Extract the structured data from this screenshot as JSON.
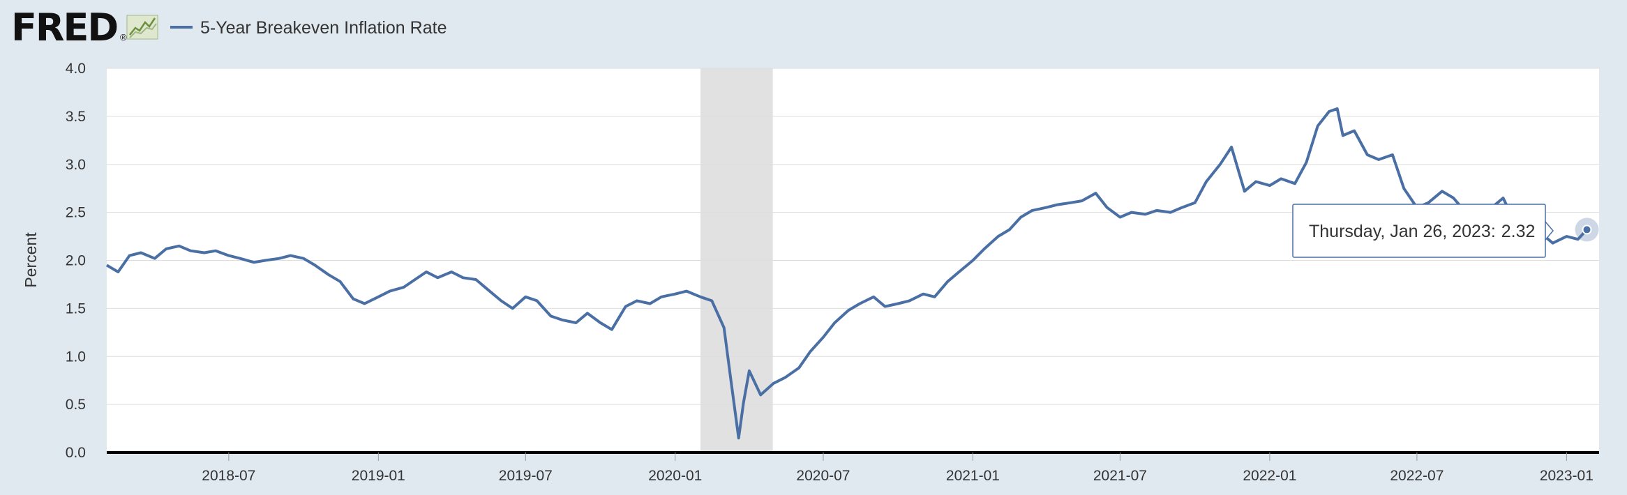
{
  "header": {
    "logo_text": "FRED",
    "logo_mark": "®",
    "logo_icon": "sparkline-icon"
  },
  "colors": {
    "background": "#e1e9f0",
    "plot_background": "#ffffff",
    "series_line": "#4a6fa5",
    "recession_band": "#e1e1e1",
    "grid": "#dddddd",
    "axis": "#000000"
  },
  "tooltip": {
    "date_text": "Thursday, Jan 26, 2023:",
    "value_text": "2.32"
  },
  "chart_data": {
    "type": "line",
    "title": "",
    "ylabel": "Percent",
    "xlabel": "",
    "ylim": [
      0,
      4.0
    ],
    "xlim": [
      "2018-02-01",
      "2023-02-10"
    ],
    "grid": true,
    "legend": "top-left",
    "y_ticks": [
      "0.0",
      "0.5",
      "1.0",
      "1.5",
      "2.0",
      "2.5",
      "3.0",
      "3.5",
      "4.0"
    ],
    "y_tick_values": [
      0,
      0.5,
      1.0,
      1.5,
      2.0,
      2.5,
      3.0,
      3.5,
      4.0
    ],
    "x_ticks": [
      "2018-07",
      "2019-01",
      "2019-07",
      "2020-01",
      "2020-07",
      "2021-01",
      "2021-07",
      "2022-01",
      "2022-07",
      "2023-01"
    ],
    "x_tick_values": [
      "2018-07-01",
      "2019-01-01",
      "2019-07-01",
      "2020-01-01",
      "2020-07-01",
      "2021-01-01",
      "2021-07-01",
      "2022-01-01",
      "2022-07-01",
      "2023-01-01"
    ],
    "recessions": [
      {
        "start": "2020-02-01",
        "end": "2020-04-30"
      }
    ],
    "series": [
      {
        "name": "5-Year Breakeven Inflation Rate",
        "x": [
          "2018-02-01",
          "2018-02-15",
          "2018-03-01",
          "2018-03-15",
          "2018-04-01",
          "2018-04-15",
          "2018-05-01",
          "2018-05-15",
          "2018-06-01",
          "2018-06-15",
          "2018-07-01",
          "2018-07-15",
          "2018-08-01",
          "2018-08-15",
          "2018-09-01",
          "2018-09-15",
          "2018-10-01",
          "2018-10-15",
          "2018-11-01",
          "2018-11-15",
          "2018-12-01",
          "2018-12-15",
          "2019-01-01",
          "2019-01-15",
          "2019-02-01",
          "2019-02-15",
          "2019-03-01",
          "2019-03-15",
          "2019-04-01",
          "2019-04-15",
          "2019-05-01",
          "2019-05-15",
          "2019-06-01",
          "2019-06-15",
          "2019-07-01",
          "2019-07-15",
          "2019-08-01",
          "2019-08-15",
          "2019-09-01",
          "2019-09-15",
          "2019-10-01",
          "2019-10-15",
          "2019-11-01",
          "2019-11-15",
          "2019-12-01",
          "2019-12-15",
          "2020-01-01",
          "2020-01-15",
          "2020-02-01",
          "2020-02-15",
          "2020-03-01",
          "2020-03-10",
          "2020-03-19",
          "2020-03-25",
          "2020-04-01",
          "2020-04-15",
          "2020-05-01",
          "2020-05-15",
          "2020-06-01",
          "2020-06-15",
          "2020-07-01",
          "2020-07-15",
          "2020-08-01",
          "2020-08-15",
          "2020-09-01",
          "2020-09-15",
          "2020-10-01",
          "2020-10-15",
          "2020-11-01",
          "2020-11-15",
          "2020-12-01",
          "2020-12-15",
          "2021-01-01",
          "2021-01-15",
          "2021-02-01",
          "2021-02-15",
          "2021-03-01",
          "2021-03-15",
          "2021-04-01",
          "2021-04-15",
          "2021-05-01",
          "2021-05-15",
          "2021-06-01",
          "2021-06-15",
          "2021-07-01",
          "2021-07-15",
          "2021-08-01",
          "2021-08-15",
          "2021-09-01",
          "2021-09-15",
          "2021-10-01",
          "2021-10-15",
          "2021-11-01",
          "2021-11-15",
          "2021-12-01",
          "2021-12-15",
          "2022-01-01",
          "2022-01-15",
          "2022-02-01",
          "2022-02-15",
          "2022-03-01",
          "2022-03-15",
          "2022-03-25",
          "2022-04-01",
          "2022-04-15",
          "2022-05-01",
          "2022-05-15",
          "2022-06-01",
          "2022-06-15",
          "2022-07-01",
          "2022-07-15",
          "2022-08-01",
          "2022-08-15",
          "2022-09-01",
          "2022-09-15",
          "2022-10-01",
          "2022-10-15",
          "2022-11-01",
          "2022-11-15",
          "2022-12-01",
          "2022-12-15",
          "2023-01-01",
          "2023-01-15",
          "2023-01-26"
        ],
        "y": [
          1.95,
          1.88,
          2.05,
          2.08,
          2.02,
          2.12,
          2.15,
          2.1,
          2.08,
          2.1,
          2.05,
          2.02,
          1.98,
          2.0,
          2.02,
          2.05,
          2.02,
          1.95,
          1.85,
          1.78,
          1.6,
          1.55,
          1.62,
          1.68,
          1.72,
          1.8,
          1.88,
          1.82,
          1.88,
          1.82,
          1.8,
          1.7,
          1.58,
          1.5,
          1.62,
          1.58,
          1.42,
          1.38,
          1.35,
          1.45,
          1.35,
          1.28,
          1.52,
          1.58,
          1.55,
          1.62,
          1.65,
          1.68,
          1.62,
          1.58,
          1.3,
          0.72,
          0.15,
          0.52,
          0.85,
          0.6,
          0.72,
          0.78,
          0.88,
          1.05,
          1.2,
          1.35,
          1.48,
          1.55,
          1.62,
          1.52,
          1.55,
          1.58,
          1.65,
          1.62,
          1.78,
          1.88,
          2.0,
          2.12,
          2.25,
          2.32,
          2.45,
          2.52,
          2.55,
          2.58,
          2.6,
          2.62,
          2.7,
          2.55,
          2.45,
          2.5,
          2.48,
          2.52,
          2.5,
          2.55,
          2.6,
          2.82,
          3.0,
          3.18,
          2.72,
          2.82,
          2.78,
          2.85,
          2.8,
          3.02,
          3.4,
          3.55,
          3.58,
          3.3,
          3.35,
          3.1,
          3.05,
          3.1,
          2.75,
          2.55,
          2.6,
          2.72,
          2.65,
          2.48,
          2.4,
          2.55,
          2.65,
          2.35,
          2.4,
          2.28,
          2.18,
          2.25,
          2.22,
          2.32
        ]
      }
    ]
  }
}
